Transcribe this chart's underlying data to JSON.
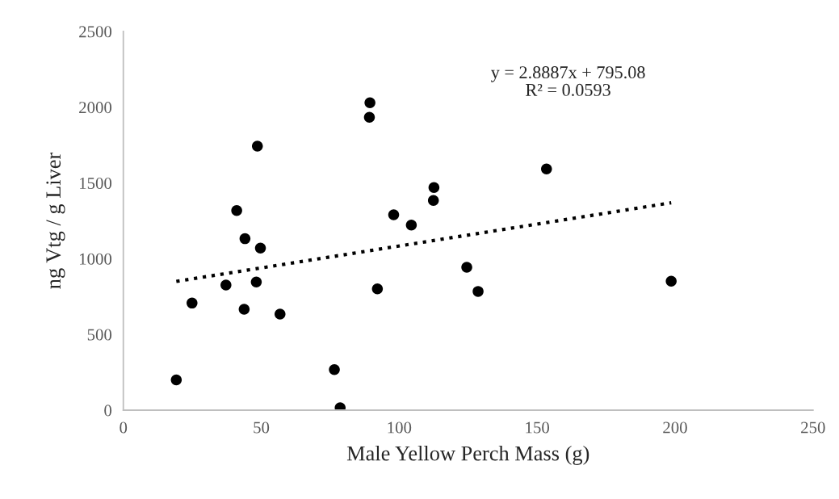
{
  "chart_data": {
    "type": "scatter",
    "xlabel": "Male Yellow Perch Mass (g)",
    "ylabel": "ng Vtg / g Liver",
    "xlim": [
      0,
      250
    ],
    "xticks": [
      0,
      50,
      100,
      150,
      200,
      250
    ],
    "ylim": [
      0,
      2500
    ],
    "yticks": [
      0,
      500,
      1000,
      1500,
      2000,
      2500
    ],
    "grid": false,
    "legend": false,
    "series": [
      {
        "color": "#000000",
        "marker": "circle",
        "x": [
          19.2,
          24.9,
          37.2,
          41.1,
          44.1,
          43.8,
          48.6,
          48.2,
          49.7,
          56.8,
          76.5,
          78.6,
          89.4,
          89.2,
          92.1,
          98.0,
          104.4,
          112.6,
          112.4,
          124.5,
          128.6,
          153.4,
          198.6
        ],
        "values": [
          200,
          707,
          826,
          1318,
          1132,
          666,
          1743,
          846,
          1070,
          634,
          268,
          16,
          2029,
          1933,
          801,
          1290,
          1222,
          1470,
          1384,
          943,
          784,
          1592,
          851
        ]
      },
      {
        "type": "line",
        "color": "#000000",
        "line_style": "dotted",
        "marker": "none",
        "x": [
          19.2,
          198.6
        ],
        "values": [
          850,
          1369
        ]
      }
    ],
    "annotations": [
      "y = 2.8887x + 795.08\nR² = 0.0593"
    ]
  }
}
